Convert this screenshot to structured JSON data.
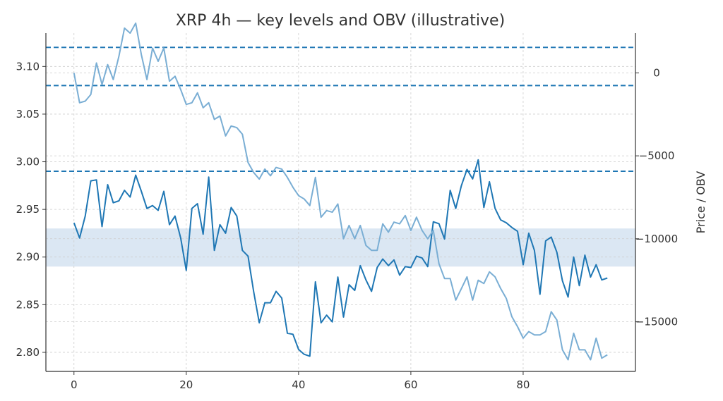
{
  "chart_data": {
    "type": "line",
    "title": "XRP 4h — key levels and OBV (illustrative)",
    "xlabel": "",
    "ylabel": "",
    "y2label": "Price / OBV",
    "xlim": [
      -5,
      100
    ],
    "ylim": [
      2.78,
      3.135
    ],
    "y2lim": [
      -18000,
      2400
    ],
    "x_ticks": [
      0,
      20,
      40,
      60,
      80
    ],
    "y_ticks": [
      2.8,
      2.85,
      2.9,
      2.95,
      3.0,
      3.05,
      3.1
    ],
    "y2_ticks": [
      0,
      -5000,
      -10000,
      -15000
    ],
    "grid": true,
    "legend": "none",
    "key_levels": [
      3.12,
      3.08,
      2.99
    ],
    "zone": [
      2.89,
      2.93
    ],
    "colors": {
      "price": "#1f77b4",
      "obv": "#7aaed4",
      "levels": "#1f77b4",
      "zone": "#dbe7f3",
      "grid": "#cccccc",
      "axis": "#333333"
    },
    "series": [
      {
        "axis": "left",
        "x": [
          0,
          1,
          2,
          3,
          4,
          5,
          6,
          7,
          8,
          9,
          10,
          11,
          12,
          13,
          14,
          15,
          16,
          17,
          18,
          19,
          20,
          21,
          22,
          23,
          24,
          25,
          26,
          27,
          28,
          29,
          30,
          31,
          32,
          33,
          34,
          35,
          36,
          37,
          38,
          39,
          40,
          41,
          42,
          43,
          44,
          45,
          46,
          47,
          48,
          49,
          50,
          51,
          52,
          53,
          54,
          55,
          56,
          57,
          58,
          59,
          60,
          61,
          62,
          63,
          64,
          65,
          66,
          67,
          68,
          69,
          70,
          71,
          72,
          73,
          74,
          75,
          76,
          77,
          78,
          79,
          80,
          81,
          82,
          83,
          84,
          85,
          86,
          87,
          88,
          89,
          90,
          91,
          92,
          93,
          94,
          95
        ],
        "values": [
          2.936,
          2.92,
          2.943,
          2.98,
          2.981,
          2.932,
          2.976,
          2.957,
          2.959,
          2.97,
          2.963,
          2.986,
          2.969,
          2.951,
          2.954,
          2.949,
          2.969,
          2.934,
          2.943,
          2.92,
          2.886,
          2.951,
          2.956,
          2.924,
          2.984,
          2.907,
          2.934,
          2.925,
          2.952,
          2.943,
          2.907,
          2.901,
          2.864,
          2.831,
          2.852,
          2.852,
          2.864,
          2.857,
          2.82,
          2.819,
          2.803,
          2.798,
          2.796,
          2.874,
          2.831,
          2.839,
          2.832,
          2.879,
          2.837,
          2.871,
          2.865,
          2.891,
          2.876,
          2.864,
          2.889,
          2.898,
          2.891,
          2.897,
          2.881,
          2.89,
          2.889,
          2.901,
          2.899,
          2.89,
          2.937,
          2.935,
          2.919,
          2.97,
          2.951,
          2.975,
          2.992,
          2.982,
          3.002,
          2.952,
          2.979,
          2.951,
          2.939,
          2.936,
          2.931,
          2.927,
          2.892,
          2.925,
          2.907,
          2.861,
          2.917,
          2.921,
          2.905,
          2.875,
          2.858,
          2.9,
          2.87,
          2.902,
          2.879,
          2.892,
          2.876,
          2.878
        ]
      },
      {
        "axis": "right",
        "x": [
          0,
          1,
          2,
          3,
          4,
          5,
          6,
          7,
          8,
          9,
          10,
          11,
          12,
          13,
          14,
          15,
          16,
          17,
          18,
          19,
          20,
          21,
          22,
          23,
          24,
          25,
          26,
          27,
          28,
          29,
          30,
          31,
          32,
          33,
          34,
          35,
          36,
          37,
          38,
          39,
          40,
          41,
          42,
          43,
          44,
          45,
          46,
          47,
          48,
          49,
          50,
          51,
          52,
          53,
          54,
          55,
          56,
          57,
          58,
          59,
          60,
          61,
          62,
          63,
          64,
          65,
          66,
          67,
          68,
          69,
          70,
          71,
          72,
          73,
          74,
          75,
          76,
          77,
          78,
          79,
          80,
          81,
          82,
          83,
          84,
          85,
          86,
          87,
          88,
          89,
          90,
          91,
          92,
          93,
          94,
          95
        ],
        "values": [
          0,
          -1800,
          -1700,
          -1300,
          600,
          -700,
          500,
          -400,
          1000,
          2700,
          2400,
          3000,
          1100,
          -400,
          1500,
          700,
          1500,
          -500,
          -200,
          -1000,
          -1900,
          -1800,
          -1200,
          -2100,
          -1800,
          -2800,
          -2600,
          -3800,
          -3200,
          -3300,
          -3700,
          -5400,
          -6000,
          -6400,
          -5800,
          -6200,
          -5700,
          -5800,
          -6300,
          -6900,
          -7400,
          -7600,
          -8000,
          -6300,
          -8700,
          -8300,
          -8400,
          -7900,
          -10000,
          -9200,
          -10000,
          -9200,
          -10400,
          -10700,
          -10700,
          -9100,
          -9600,
          -9000,
          -9100,
          -8600,
          -9500,
          -8700,
          -9500,
          -10000,
          -9500,
          -11500,
          -12400,
          -12400,
          -13700,
          -13000,
          -12300,
          -13700,
          -12500,
          -12700,
          -12000,
          -12300,
          -13000,
          -13600,
          -14700,
          -15300,
          -16000,
          -15600,
          -15800,
          -15800,
          -15600,
          -14400,
          -14900,
          -16700,
          -17300,
          -15700,
          -16700,
          -16700,
          -17300,
          -16000,
          -17200,
          -17000
        ]
      }
    ]
  }
}
